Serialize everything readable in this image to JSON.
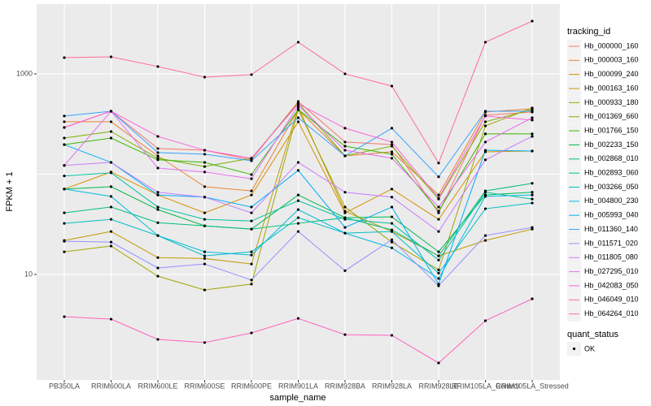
{
  "chart_data": {
    "type": "line",
    "xlabel": "sample_name",
    "ylabel": "FPKM + 1",
    "categories": [
      "PB350LA",
      "RRIM600LA",
      "RRIM600LE",
      "RRIM600SE",
      "RRIM600PE",
      "RRIM901LA",
      "RRIM928BA",
      "RRIM928LA",
      "RRIM928LE",
      "RRIM105LA_Control",
      "RRIM105LA_Stressed"
    ],
    "log_y": true,
    "ylim": [
      0.885,
      4966
    ],
    "yticks": [
      10,
      1000
    ],
    "y_minor_grid": [
      100
    ],
    "grid": true,
    "legend_title": "tracking_id",
    "legend_position": "right",
    "point_legend_title": "quant_status",
    "point_legend_label": "OK",
    "point_color": "#000000",
    "series": [
      {
        "name": "Hb_000000_160",
        "color": "#F8766D",
        "values": [
          292,
          424,
          180,
          173,
          139,
          530,
          209,
          197,
          41.1,
          387,
          416
        ]
      },
      {
        "name": "Hb_000003_160",
        "color": "#EA8331",
        "values": [
          333,
          333,
          152,
          75,
          68,
          440,
          152,
          167,
          62,
          416,
          449
        ]
      },
      {
        "name": "Hb_000099_240",
        "color": "#D89000",
        "values": [
          71,
          105,
          62,
          41.1,
          62,
          333,
          41.1,
          71,
          35.4,
          167,
          170
        ]
      },
      {
        "name": "Hb_000163_160",
        "color": "#C09B00",
        "values": [
          21.8,
          26.8,
          14.7,
          14.4,
          12.7,
          466,
          42.7,
          26.8,
          15.3,
          21.8,
          28.3
        ]
      },
      {
        "name": "Hb_000933_180",
        "color": "#A3A500",
        "values": [
          16.8,
          19.2,
          9.6,
          7.0,
          8.0,
          440,
          47,
          21.0,
          11.1,
          303,
          457
        ]
      },
      {
        "name": "Hb_001369_660",
        "color": "#7CAE00",
        "values": [
          229,
          266,
          144,
          119,
          144,
          511,
          152,
          190,
          56.5,
          333,
          440
        ]
      },
      {
        "name": "Hb_001766_150",
        "color": "#39B600",
        "values": [
          197,
          229,
          139,
          131,
          99,
          440,
          190,
          158,
          42.7,
          252,
          252
        ]
      },
      {
        "name": "Hb_002233_150",
        "color": "#00BB4E",
        "values": [
          71,
          75,
          44.3,
          30.5,
          28.3,
          62,
          36.8,
          37.5,
          16.8,
          62,
          66
        ]
      },
      {
        "name": "Hb_002868_010",
        "color": "#00BF7D",
        "values": [
          41.1,
          47,
          32.8,
          30.5,
          28.3,
          32.3,
          36.8,
          27.8,
          15.3,
          68,
          81
        ]
      },
      {
        "name": "Hb_002893_060",
        "color": "#00C1A3",
        "values": [
          96,
          103,
          47,
          35.4,
          34.1,
          54.4,
          35.4,
          32.3,
          13.9,
          66,
          56.5
        ]
      },
      {
        "name": "Hb_003266_050",
        "color": "#00BFC4",
        "values": [
          32.3,
          35.4,
          24.4,
          15.3,
          16.8,
          36.8,
          25.8,
          26.8,
          10.3,
          45.2,
          51.5
        ]
      },
      {
        "name": "Hb_004800_230",
        "color": "#00BAE0",
        "values": [
          71,
          60,
          24.4,
          16.8,
          15.6,
          44.3,
          25.8,
          18.4,
          9.1,
          60,
          62
        ]
      },
      {
        "name": "Hb_005993_040",
        "color": "#00B0F6",
        "values": [
          197,
          131,
          62,
          59,
          47,
          109,
          29.4,
          47,
          8.0,
          173,
          170
        ]
      },
      {
        "name": "Hb_011360_140",
        "color": "#35A2FF",
        "values": [
          380,
          424,
          164,
          158,
          136,
          365,
          152,
          287,
          94,
          424,
          424
        ]
      },
      {
        "name": "Hb_011571_020",
        "color": "#9590FF",
        "values": [
          21.4,
          21.0,
          11.6,
          12.7,
          8.8,
          26.8,
          10.9,
          22.2,
          7.7,
          24.4,
          29.4
        ]
      },
      {
        "name": "Hb_011805_080",
        "color": "#C77CFF",
        "values": [
          122,
          131,
          66,
          59,
          41.1,
          131,
          66,
          59,
          26.8,
          139,
          238
        ]
      },
      {
        "name": "Hb_027295_010",
        "color": "#E76BF3",
        "values": [
          122,
          424,
          115,
          105,
          90,
          483,
          173,
          144,
          47,
          209,
          365
        ]
      },
      {
        "name": "Hb_042083_050",
        "color": "#FA62DB",
        "values": [
          292,
          424,
          238,
          173,
          144,
          502,
          287,
          209,
          57.6,
          380,
          346
        ]
      },
      {
        "name": "Hb_046049_010",
        "color": "#FF62BC",
        "values": [
          3.79,
          3.58,
          2.25,
          2.09,
          2.61,
          3.64,
          2.51,
          2.47,
          1.31,
          3.45,
          5.71
        ]
      },
      {
        "name": "Hb_064264_010",
        "color": "#FF6C91",
        "values": [
          1451,
          1479,
          1183,
          928,
          982,
          2070,
          1000,
          756,
          129,
          2070,
          3360
        ]
      }
    ]
  }
}
